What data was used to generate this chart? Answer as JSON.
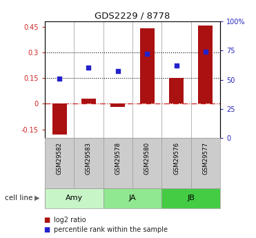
{
  "title": "GDS2229 / 8778",
  "samples": [
    "GSM29582",
    "GSM29583",
    "GSM29578",
    "GSM29580",
    "GSM29576",
    "GSM29577"
  ],
  "log2_ratio": [
    -0.18,
    0.03,
    -0.02,
    0.44,
    0.15,
    0.455
  ],
  "percentile_rank_norm": [
    0.148,
    0.21,
    0.19,
    0.293,
    0.222,
    0.302
  ],
  "cell_line_groups": [
    {
      "label": "Amy",
      "indices": [
        0,
        1
      ],
      "color": "#c8f5c8"
    },
    {
      "label": "JA",
      "indices": [
        2,
        3
      ],
      "color": "#90e890"
    },
    {
      "label": "JB",
      "indices": [
        4,
        5
      ],
      "color": "#44cc44"
    }
  ],
  "ylim_left": [
    -0.2,
    0.48
  ],
  "ylim_right": [
    0,
    100
  ],
  "yticks_left": [
    -0.15,
    0.0,
    0.15,
    0.3,
    0.45
  ],
  "yticks_right": [
    0,
    25,
    50,
    75,
    100
  ],
  "ytick_labels_left": [
    "-0.15",
    "0",
    "0.15",
    "0.3",
    "0.45"
  ],
  "ytick_labels_right": [
    "0",
    "25",
    "50",
    "75",
    "100%"
  ],
  "hlines": [
    0.15,
    0.3
  ],
  "bar_color": "#aa1111",
  "dot_color": "#2222cc",
  "bar_width": 0.5,
  "zero_line_color": "#cc2222",
  "bg_color": "#ffffff",
  "label_log2": "log2 ratio",
  "label_pct": "percentile rank within the sample",
  "cell_line_label": "cell line",
  "sample_box_color": "#cccccc"
}
